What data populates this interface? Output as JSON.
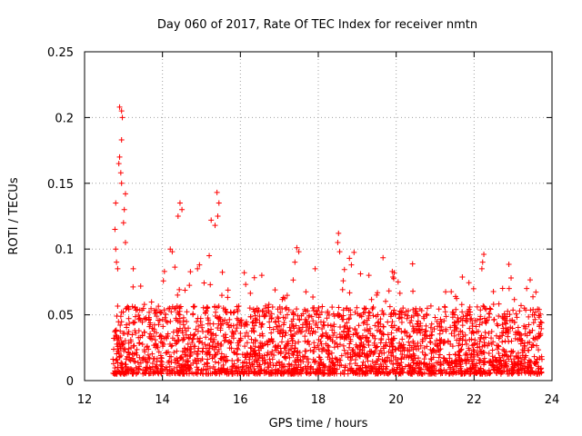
{
  "chart_data": {
    "type": "scatter",
    "title": "Day 060 of 2017, Rate Of TEC Index for receiver nmtn",
    "xlabel": "GPS time / hours",
    "ylabel": "ROTI / TECUs",
    "xlim": [
      12,
      24
    ],
    "ylim": [
      0,
      0.25
    ],
    "x_ticks": [
      12,
      14,
      16,
      18,
      20,
      22,
      24
    ],
    "x_tick_labels": [
      "12",
      "14",
      "16",
      "18",
      "20",
      "22",
      "24"
    ],
    "y_ticks": [
      0,
      0.05,
      0.1,
      0.15,
      0.2,
      0.25
    ],
    "y_tick_labels": [
      "0",
      "0.05",
      "0.1",
      "0.15",
      "0.2",
      "0.25"
    ],
    "grid": true,
    "marker": "+",
    "series": [
      {
        "name": "ROTI",
        "color": "#ff0000",
        "x_range": [
          12.7,
          23.75
        ],
        "typical_band": [
          0.005,
          0.05
        ],
        "points": [
          {
            "x": 12.9,
            "y": 0.208
          },
          {
            "x": 12.95,
            "y": 0.205
          },
          {
            "x": 12.97,
            "y": 0.2
          },
          {
            "x": 12.95,
            "y": 0.183
          },
          {
            "x": 12.9,
            "y": 0.17
          },
          {
            "x": 12.88,
            "y": 0.165
          },
          {
            "x": 12.93,
            "y": 0.158
          },
          {
            "x": 12.95,
            "y": 0.15
          },
          {
            "x": 13.05,
            "y": 0.142
          },
          {
            "x": 13.02,
            "y": 0.13
          },
          {
            "x": 12.8,
            "y": 0.135
          },
          {
            "x": 12.78,
            "y": 0.115
          },
          {
            "x": 12.8,
            "y": 0.1
          },
          {
            "x": 12.82,
            "y": 0.09
          },
          {
            "x": 12.85,
            "y": 0.085
          },
          {
            "x": 13.0,
            "y": 0.12
          },
          {
            "x": 13.05,
            "y": 0.105
          },
          {
            "x": 13.25,
            "y": 0.085
          },
          {
            "x": 14.45,
            "y": 0.135
          },
          {
            "x": 14.5,
            "y": 0.13
          },
          {
            "x": 14.4,
            "y": 0.125
          },
          {
            "x": 14.2,
            "y": 0.1
          },
          {
            "x": 14.25,
            "y": 0.098
          },
          {
            "x": 14.05,
            "y": 0.083
          },
          {
            "x": 15.4,
            "y": 0.143
          },
          {
            "x": 15.45,
            "y": 0.135
          },
          {
            "x": 15.42,
            "y": 0.125
          },
          {
            "x": 15.25,
            "y": 0.122
          },
          {
            "x": 15.35,
            "y": 0.118
          },
          {
            "x": 15.2,
            "y": 0.095
          },
          {
            "x": 14.95,
            "y": 0.088
          },
          {
            "x": 14.9,
            "y": 0.085
          },
          {
            "x": 16.1,
            "y": 0.082
          },
          {
            "x": 16.55,
            "y": 0.08
          },
          {
            "x": 17.45,
            "y": 0.101
          },
          {
            "x": 17.5,
            "y": 0.098
          },
          {
            "x": 17.4,
            "y": 0.09
          },
          {
            "x": 17.92,
            "y": 0.085
          },
          {
            "x": 18.52,
            "y": 0.112
          },
          {
            "x": 18.5,
            "y": 0.105
          },
          {
            "x": 18.55,
            "y": 0.098
          },
          {
            "x": 18.8,
            "y": 0.093
          },
          {
            "x": 18.85,
            "y": 0.088
          },
          {
            "x": 19.3,
            "y": 0.08
          },
          {
            "x": 19.9,
            "y": 0.083
          },
          {
            "x": 19.95,
            "y": 0.082
          },
          {
            "x": 19.5,
            "y": 0.065
          },
          {
            "x": 20.05,
            "y": 0.075
          },
          {
            "x": 22.25,
            "y": 0.096
          },
          {
            "x": 22.22,
            "y": 0.09
          },
          {
            "x": 22.2,
            "y": 0.085
          },
          {
            "x": 22.95,
            "y": 0.078
          },
          {
            "x": 22.9,
            "y": 0.07
          },
          {
            "x": 22.5,
            "y": 0.058
          },
          {
            "x": 23.35,
            "y": 0.07
          },
          {
            "x": 23.5,
            "y": 0.05
          },
          {
            "x": 21.0,
            "y": 0.048
          },
          {
            "x": 21.5,
            "y": 0.05
          },
          {
            "x": 21.6,
            "y": 0.045
          },
          {
            "x": 20.8,
            "y": 0.055
          }
        ]
      }
    ]
  }
}
